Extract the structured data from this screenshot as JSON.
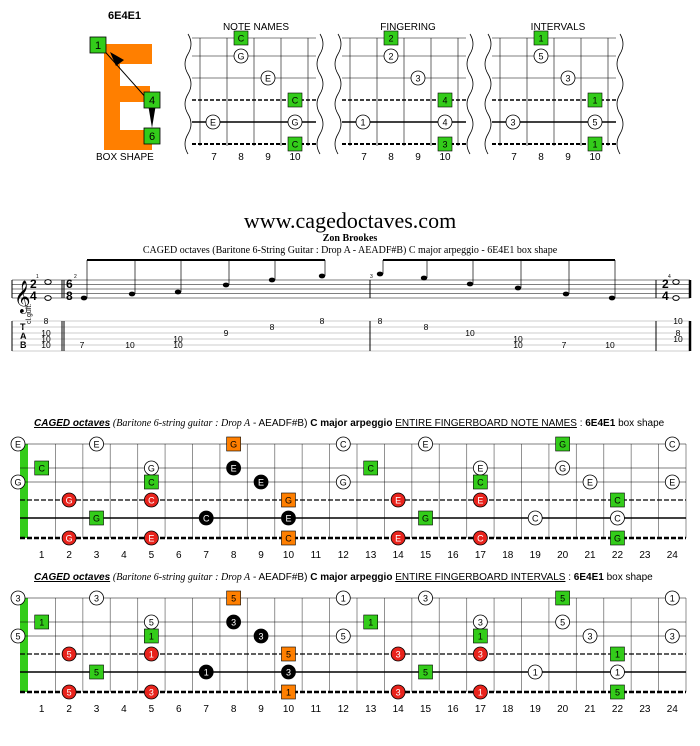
{
  "box": {
    "title": "6E4E1",
    "caption": "BOX SHAPE",
    "fingers": [
      "1",
      "4",
      "6"
    ],
    "letter_color": "#ff7f00"
  },
  "mini_diagrams": {
    "headers": [
      "NOTE NAMES",
      "FINGERING",
      "INTERVALS"
    ],
    "frets": [
      "7",
      "8",
      "9",
      "10"
    ],
    "note_names": [
      "C",
      "G",
      "E",
      "C",
      "E",
      "G",
      "C"
    ],
    "fingering": [
      "2",
      "2",
      "3",
      "4",
      "1",
      "4",
      "3"
    ],
    "intervals": [
      "1",
      "5",
      "3",
      "1",
      "3",
      "5",
      "1"
    ]
  },
  "header": {
    "site": "www.cagedoctaves.com",
    "author": "Zon Brookes",
    "subtitle": "CAGED octaves (Baritone 6-String Guitar : Drop A - AEADF#B) C major arpeggio - 6E4E1 box shape"
  },
  "staff": {
    "clef": "𝄞",
    "time1_top": "2",
    "time1_bottom": "4",
    "time2_top": "6",
    "time2_bottom": "8",
    "instrument": "cl.guit.",
    "tab_letters": [
      "T",
      "A",
      "B"
    ],
    "measure_numbers": [
      "1",
      "2",
      "3",
      "4"
    ],
    "tab_numbers": [
      "8",
      "10",
      "10",
      "7",
      "10",
      "10",
      "10",
      "9",
      "8",
      "8",
      "8",
      "8",
      "10",
      "10",
      "10",
      "7",
      "10",
      "10",
      "8",
      "10",
      "10"
    ]
  },
  "fretboard1": {
    "title_parts": [
      "CAGED octaves",
      "(Baritone 6-string guitar",
      ": Drop A",
      "- AEADF#B)",
      "C major arpeggio",
      "ENTIRE FINGERBOARD NOTE NAMES",
      ":",
      "6E4E1",
      "box shape"
    ],
    "open_labels": [
      "E",
      "G"
    ],
    "marks": [
      "E",
      "G",
      "C",
      "E",
      "G",
      "C",
      "C",
      "G",
      "E",
      "C",
      "E",
      "G",
      "C",
      "E",
      "G",
      "C",
      "E",
      "E",
      "G",
      "C",
      "G",
      "E",
      "E",
      "C",
      "G",
      "C",
      "E",
      "G",
      "C",
      "C",
      "G",
      "E",
      "C",
      "E",
      "C",
      "G",
      "E",
      "C",
      "E",
      "G",
      "E",
      "C",
      "G",
      "E",
      "C",
      "E",
      "G",
      "E",
      "G",
      "C",
      "G",
      "C",
      "E",
      "E",
      "G",
      "C"
    ]
  },
  "fretboard2": {
    "title_parts": [
      "CAGED octaves",
      "(Baritone 6-string guitar",
      ": Drop A",
      "- AEADF#B)",
      "C major arpeggio",
      "ENTIRE FINGERBOARD INTERVALS",
      ":",
      "6E4E1",
      "box shape"
    ],
    "open_labels": [
      "3",
      "5"
    ],
    "marks": [
      "3",
      "5",
      "1",
      "3",
      "5",
      "1",
      "1",
      "5",
      "3",
      "1",
      "3",
      "5",
      "1",
      "3",
      "5",
      "1",
      "3",
      "3",
      "5",
      "1",
      "5",
      "3",
      "3",
      "1",
      "5",
      "1",
      "3",
      "5",
      "1",
      "1",
      "5",
      "3",
      "1",
      "3",
      "1",
      "5",
      "3",
      "1",
      "3",
      "5",
      "3",
      "1",
      "5",
      "3",
      "1",
      "3",
      "5",
      "3",
      "5",
      "1",
      "5",
      "1",
      "3",
      "3",
      "5",
      "1"
    ]
  },
  "fret_numbers": [
    "1",
    "2",
    "3",
    "4",
    "5",
    "6",
    "7",
    "8",
    "9",
    "10",
    "11",
    "12",
    "13",
    "14",
    "15",
    "16",
    "17",
    "18",
    "19",
    "20",
    "21",
    "22",
    "23",
    "24"
  ],
  "colors": {
    "green": "#33cc1a",
    "red": "#e8231c",
    "orange": "#ff7f00",
    "black": "#000000",
    "white": "#ffffff"
  }
}
